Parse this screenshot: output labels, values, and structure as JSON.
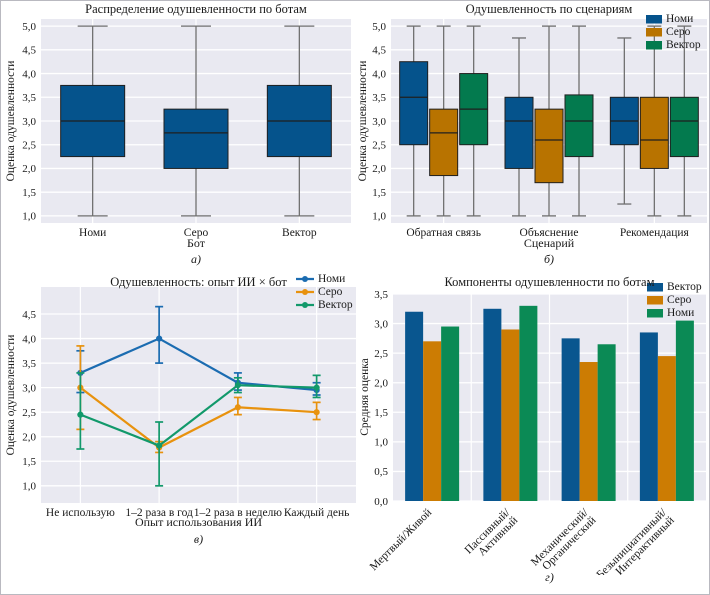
{
  "figure": {
    "background": "#ffffff",
    "plot_background": "#e9e9f1",
    "grid_color": "#ffffff",
    "whisker_color": "#6f6f6f",
    "edge_color": "#1f1f1f",
    "text_color": "#1a1a1a"
  },
  "chart_data": [
    {
      "id": "a",
      "type": "box",
      "title": "Распределение одушевленности по ботам",
      "xlabel": "Бот",
      "ylabel": "Оценка одушевленности",
      "caption": "а)",
      "ylim": [
        0.85,
        5.15
      ],
      "yticks": [
        1.0,
        1.5,
        2.0,
        2.5,
        3.0,
        3.5,
        4.0,
        4.5,
        5.0
      ],
      "categories": [
        "Номи",
        "Серо",
        "Вектор"
      ],
      "legend_position": null,
      "series": [
        {
          "name": "",
          "color": "#05538c",
          "boxes": [
            {
              "lo": 1.0,
              "q1": 2.25,
              "med": 3.0,
              "q3": 3.75,
              "hi": 5.0
            },
            {
              "lo": 1.0,
              "q1": 2.0,
              "med": 2.75,
              "q3": 3.25,
              "hi": 5.0
            },
            {
              "lo": 1.0,
              "q1": 2.25,
              "med": 3.0,
              "q3": 3.75,
              "hi": 5.0
            }
          ]
        }
      ]
    },
    {
      "id": "b",
      "type": "box",
      "title": "Одушевленность по сценариям",
      "xlabel": "Сценарий",
      "ylabel": "Оценка одушевленности",
      "caption": "б)",
      "ylim": [
        0.85,
        5.15
      ],
      "yticks": [
        1.0,
        1.5,
        2.0,
        2.5,
        3.0,
        3.5,
        4.0,
        4.5,
        5.0
      ],
      "categories": [
        "Обратная связь",
        "Объяснение",
        "Рекомендация"
      ],
      "legend_position": "top-right",
      "series": [
        {
          "name": "Номи",
          "color": "#05538c",
          "boxes": [
            {
              "lo": 1.0,
              "q1": 2.5,
              "med": 3.5,
              "q3": 4.25,
              "hi": 5.0
            },
            {
              "lo": 1.0,
              "q1": 2.0,
              "med": 3.0,
              "q3": 3.5,
              "hi": 4.75
            },
            {
              "lo": 1.25,
              "q1": 2.5,
              "med": 3.0,
              "q3": 3.5,
              "hi": 4.75
            }
          ]
        },
        {
          "name": "Серо",
          "color": "#b87300",
          "boxes": [
            {
              "lo": 1.0,
              "q1": 1.85,
              "med": 2.75,
              "q3": 3.25,
              "hi": 5.0
            },
            {
              "lo": 1.0,
              "q1": 1.7,
              "med": 2.6,
              "q3": 3.25,
              "hi": 5.0
            },
            {
              "lo": 1.0,
              "q1": 2.0,
              "med": 2.6,
              "q3": 3.5,
              "hi": 5.0
            }
          ]
        },
        {
          "name": "Вектор",
          "color": "#037a4e",
          "boxes": [
            {
              "lo": 1.0,
              "q1": 2.5,
              "med": 3.25,
              "q3": 4.0,
              "hi": 5.0
            },
            {
              "lo": 1.0,
              "q1": 2.25,
              "med": 3.0,
              "q3": 3.55,
              "hi": 5.0
            },
            {
              "lo": 1.0,
              "q1": 2.25,
              "med": 3.0,
              "q3": 3.5,
              "hi": 5.0
            }
          ]
        }
      ]
    },
    {
      "id": "v",
      "type": "line",
      "title": "Одушевленность: опыт ИИ × бот",
      "xlabel": "Опыт использования ИИ",
      "ylabel": "Оценка одушевленности",
      "caption": "в)",
      "ylim": [
        0.65,
        5.05
      ],
      "yticks": [
        1.0,
        1.5,
        2.0,
        2.5,
        3.0,
        3.5,
        4.0,
        4.5
      ],
      "categories": [
        "Не использую",
        "1–2 раза в год",
        "1–2 раза в неделю",
        "Каждый день"
      ],
      "legend_position": "top-right",
      "series": [
        {
          "name": "Номи",
          "color": "#1b6cb1",
          "values": [
            3.3,
            4.0,
            3.1,
            2.95
          ],
          "err_lo": [
            2.9,
            3.5,
            2.95,
            2.85
          ],
          "err_hi": [
            3.75,
            4.65,
            3.3,
            3.1
          ]
        },
        {
          "name": "Серо",
          "color": "#e8920e",
          "values": [
            3.0,
            1.78,
            2.6,
            2.5
          ],
          "err_lo": [
            2.15,
            1.68,
            2.45,
            2.35
          ],
          "err_hi": [
            3.85,
            1.9,
            2.8,
            2.7
          ]
        },
        {
          "name": "Вектор",
          "color": "#12996b",
          "values": [
            2.45,
            1.82,
            3.05,
            3.0
          ],
          "err_lo": [
            1.75,
            1.0,
            2.9,
            2.8
          ],
          "err_hi": [
            3.3,
            2.3,
            3.2,
            3.25
          ]
        }
      ]
    },
    {
      "id": "g",
      "type": "bar",
      "title": "Компоненты одушевленности по ботам",
      "xlabel": "",
      "ylabel": "Средняя оценка",
      "caption": "г)",
      "ylim": [
        0.0,
        3.5
      ],
      "yticks": [
        0.0,
        0.5,
        1.0,
        1.5,
        2.0,
        2.5,
        3.0,
        3.5
      ],
      "categories": [
        [
          "Мертвый/Живой"
        ],
        [
          "Пассивный/",
          "Активный"
        ],
        [
          "Механический/",
          "Органический"
        ],
        [
          "Безынициативный/",
          "Интерактивный"
        ]
      ],
      "legend_position": "top-right",
      "series": [
        {
          "name": "Вектор",
          "color": "#09568f",
          "values": [
            3.2,
            3.25,
            2.75,
            2.85
          ]
        },
        {
          "name": "Серо",
          "color": "#cc7c03",
          "values": [
            2.7,
            2.9,
            2.35,
            2.45
          ]
        },
        {
          "name": "Номи",
          "color": "#0b8a55",
          "values": [
            2.95,
            3.3,
            2.65,
            3.05
          ]
        }
      ]
    }
  ]
}
